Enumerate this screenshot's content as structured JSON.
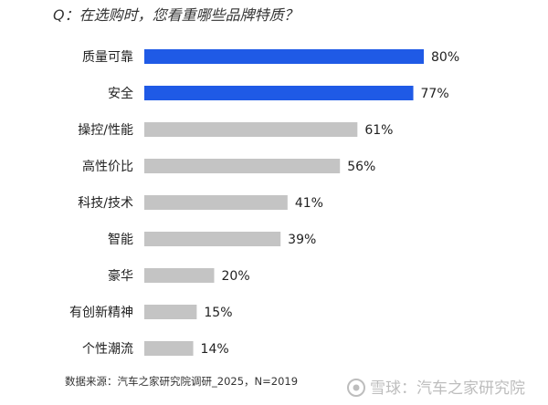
{
  "question": "Q：在选购时，您看重哪些品牌特质？",
  "source": "数据来源：汽车之家研究院调研_2025，N=2019",
  "watermark": "雪球：汽车之家研究院",
  "colors": {
    "highlight": "#1f5ae6",
    "normal": "#c4c4c4"
  },
  "chart_data": {
    "type": "bar",
    "orientation": "horizontal",
    "categories": [
      "质量可靠",
      "安全",
      "操控/性能",
      "高性价比",
      "科技/技术",
      "智能",
      "豪华",
      "有创新精神",
      "个性潮流"
    ],
    "values": [
      80,
      77,
      61,
      56,
      41,
      39,
      20,
      15,
      14
    ],
    "value_labels": [
      "80%",
      "77%",
      "61%",
      "56%",
      "41%",
      "39%",
      "20%",
      "15%",
      "14%"
    ],
    "highlighted": [
      true,
      true,
      false,
      false,
      false,
      false,
      false,
      false,
      false
    ],
    "title": "Q：在选购时，您看重哪些品牌特质？",
    "xlabel": "",
    "ylabel": "",
    "xlim": [
      0,
      80
    ],
    "grid": false
  }
}
